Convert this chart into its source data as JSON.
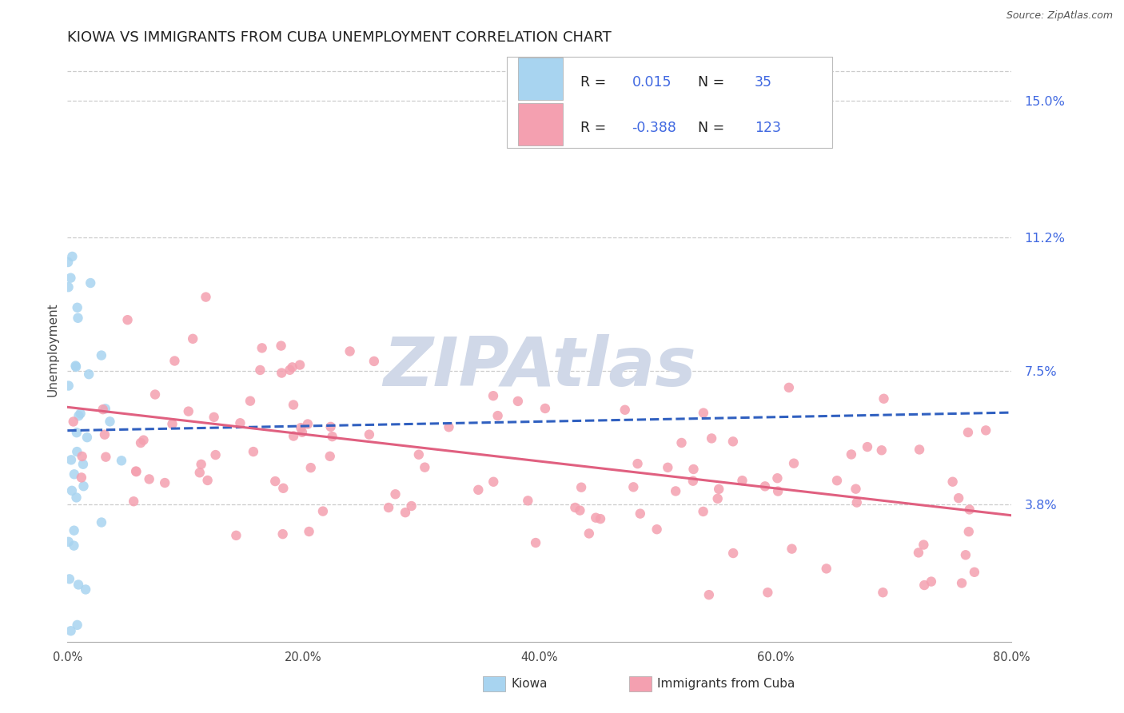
{
  "title": "KIOWA VS IMMIGRANTS FROM CUBA UNEMPLOYMENT CORRELATION CHART",
  "source_text": "Source: ZipAtlas.com",
  "ylabel": "Unemployment",
  "xlim": [
    0.0,
    80.0
  ],
  "ylim": [
    0.0,
    16.2
  ],
  "ytick_vals": [
    3.8,
    7.5,
    11.2,
    15.0
  ],
  "ytick_labels": [
    "3.8%",
    "7.5%",
    "11.2%",
    "15.0%"
  ],
  "xtick_vals": [
    0.0,
    20.0,
    40.0,
    60.0,
    80.0
  ],
  "xtick_labels": [
    "0.0%",
    "20.0%",
    "40.0%",
    "60.0%",
    "80.0%"
  ],
  "kiowa_R": "0.015",
  "kiowa_N": "35",
  "cuba_R": "-0.388",
  "cuba_N": "123",
  "kiowa_scatter_color": "#A8D4F0",
  "cuba_scatter_color": "#F4A0B0",
  "kiowa_line_color": "#3060C0",
  "cuba_line_color": "#E06080",
  "watermark_text": "ZIPAtlas",
  "watermark_color": "#D0D8E8",
  "legend_label_1": "Kiowa",
  "legend_label_2": "Immigrants from Cuba",
  "background_color": "#FFFFFF",
  "grid_color": "#CCCCCC",
  "title_color": "#222222",
  "source_color": "#555555",
  "ytick_color": "#4169E1",
  "xtick_color": "#444444",
  "r_label_color": "#222222",
  "r_val_color": "#4169E1",
  "n_label_color": "#222222",
  "n_val_color": "#4169E1",
  "kiowa_trend_x0": 0,
  "kiowa_trend_x1": 80,
  "kiowa_trend_y0": 5.85,
  "kiowa_trend_y1": 6.35,
  "cuba_trend_x0": 0,
  "cuba_trend_x1": 80,
  "cuba_trend_y0": 6.5,
  "cuba_trend_y1": 3.5
}
